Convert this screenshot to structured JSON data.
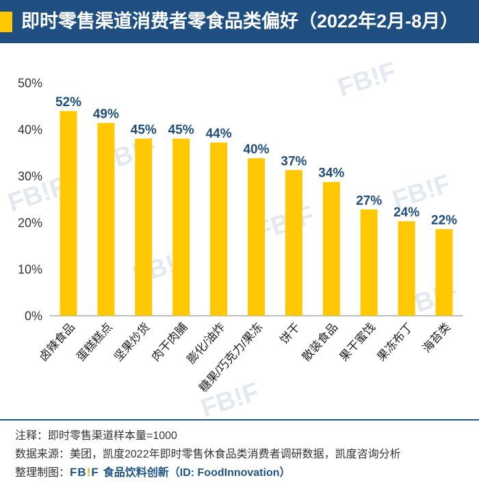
{
  "header": {
    "background": "#1E4F80",
    "accent_color": "#FFC800"
  },
  "chart_data": {
    "type": "bar",
    "title": "即时零售渠道消费者零食品类偏好（2022年2月-8月）",
    "xlabel": "",
    "ylabel": "",
    "categories": [
      "卤辣食品",
      "蛋糕糕点",
      "坚果炒货",
      "肉干肉脯",
      "膨化/油炸",
      "糖果/巧克力/果冻",
      "饼干",
      "散装食品",
      "果干蜜饯",
      "果冻布丁",
      "海苔类"
    ],
    "values": [
      52,
      49,
      45,
      45,
      44,
      40,
      37,
      34,
      27,
      24,
      22
    ],
    "data_labels": [
      "52%",
      "49%",
      "45%",
      "45%",
      "44%",
      "40%",
      "37%",
      "34%",
      "27%",
      "24%",
      "22%"
    ],
    "ylim": [
      0,
      50
    ],
    "yticks": [
      0,
      10,
      20,
      30,
      40,
      50
    ],
    "ytick_labels": [
      "0%",
      "10%",
      "20%",
      "30%",
      "40%",
      "50%"
    ],
    "grid": false,
    "legend": "none",
    "bar_color": "#FFC800",
    "data_label_color": "#1F4E79"
  },
  "footer": {
    "note": "注释：即时零售渠道样本量=1000",
    "source": "数据来源：美团，凯度2022年即时零售休食品类消费者调研数据，凯度咨询分析",
    "credit_label": "整理制图：",
    "logo_parts": [
      "FB",
      "!",
      "F"
    ],
    "credit_name": "食品饮料创新（ID: FoodInnovation）",
    "accent_color": "#1F5486"
  },
  "watermark": "FB!F"
}
